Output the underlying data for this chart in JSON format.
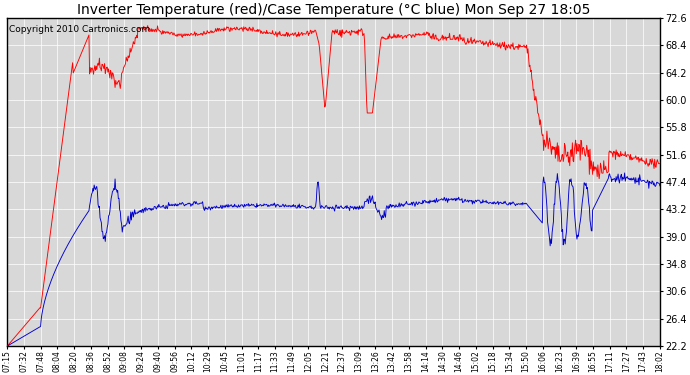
{
  "title": "Inverter Temperature (red)/Case Temperature (°C blue) Mon Sep 27 18:05",
  "copyright": "Copyright 2010 Cartronics.com",
  "y_ticks": [
    22.2,
    26.4,
    30.6,
    34.8,
    39.0,
    43.2,
    47.4,
    51.6,
    55.8,
    60.0,
    64.2,
    68.4,
    72.6
  ],
  "ylim": [
    22.2,
    72.6
  ],
  "x_labels": [
    "07:15",
    "07:32",
    "07:48",
    "08:04",
    "08:20",
    "08:36",
    "08:52",
    "09:08",
    "09:24",
    "09:40",
    "09:56",
    "10:12",
    "10:29",
    "10:45",
    "11:01",
    "11:17",
    "11:33",
    "11:49",
    "12:05",
    "12:21",
    "12:37",
    "13:09",
    "13:26",
    "13:42",
    "13:58",
    "14:14",
    "14:30",
    "14:46",
    "15:02",
    "15:18",
    "15:34",
    "15:50",
    "16:06",
    "16:23",
    "16:39",
    "16:55",
    "17:11",
    "17:27",
    "17:43",
    "18:02"
  ],
  "bg_color": "#ffffff",
  "plot_bg_color": "#d8d8d8",
  "red_color": "#ff0000",
  "blue_color": "#0000cc",
  "grid_color": "#ffffff",
  "title_fontsize": 10,
  "copyright_fontsize": 6.5
}
